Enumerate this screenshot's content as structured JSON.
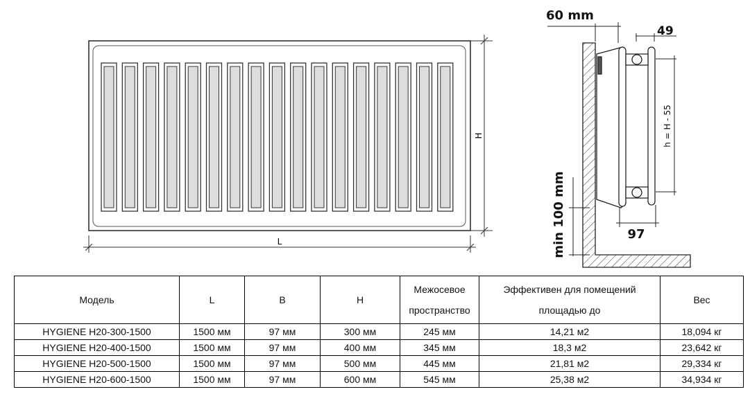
{
  "drawing": {
    "front_view": {
      "height_label": "H",
      "length_label": "L",
      "slot_count": 17
    },
    "side_view": {
      "wall_gap_label": "60 mm",
      "panel_depth_label": "49",
      "axis_distance_label": "h = H - 55",
      "floor_gap_label": "min 100 mm",
      "total_depth_label": "97"
    }
  },
  "table": {
    "headers": [
      "Модель",
      "L",
      "B",
      "H",
      "Межосевое пространство",
      "Эффективен для помещений площадью до",
      "Вес"
    ],
    "rows": [
      [
        "HYGIENE H20-300-1500",
        "1500 мм",
        "97 мм",
        "300 мм",
        "245 мм",
        "14,21 м2",
        "18,094 кг"
      ],
      [
        "HYGIENE H20-400-1500",
        "1500 мм",
        "97 мм",
        "400 мм",
        "345 мм",
        "18,3 м2",
        "23,642 кг"
      ],
      [
        "HYGIENE H20-500-1500",
        "1500 мм",
        "97 мм",
        "500 мм",
        "445 мм",
        "21,81 м2",
        "29,334 кг"
      ],
      [
        "HYGIENE H20-600-1500",
        "1500 мм",
        "97 мм",
        "600 мм",
        "545 мм",
        "25,38 м2",
        "34,934 кг"
      ]
    ]
  }
}
